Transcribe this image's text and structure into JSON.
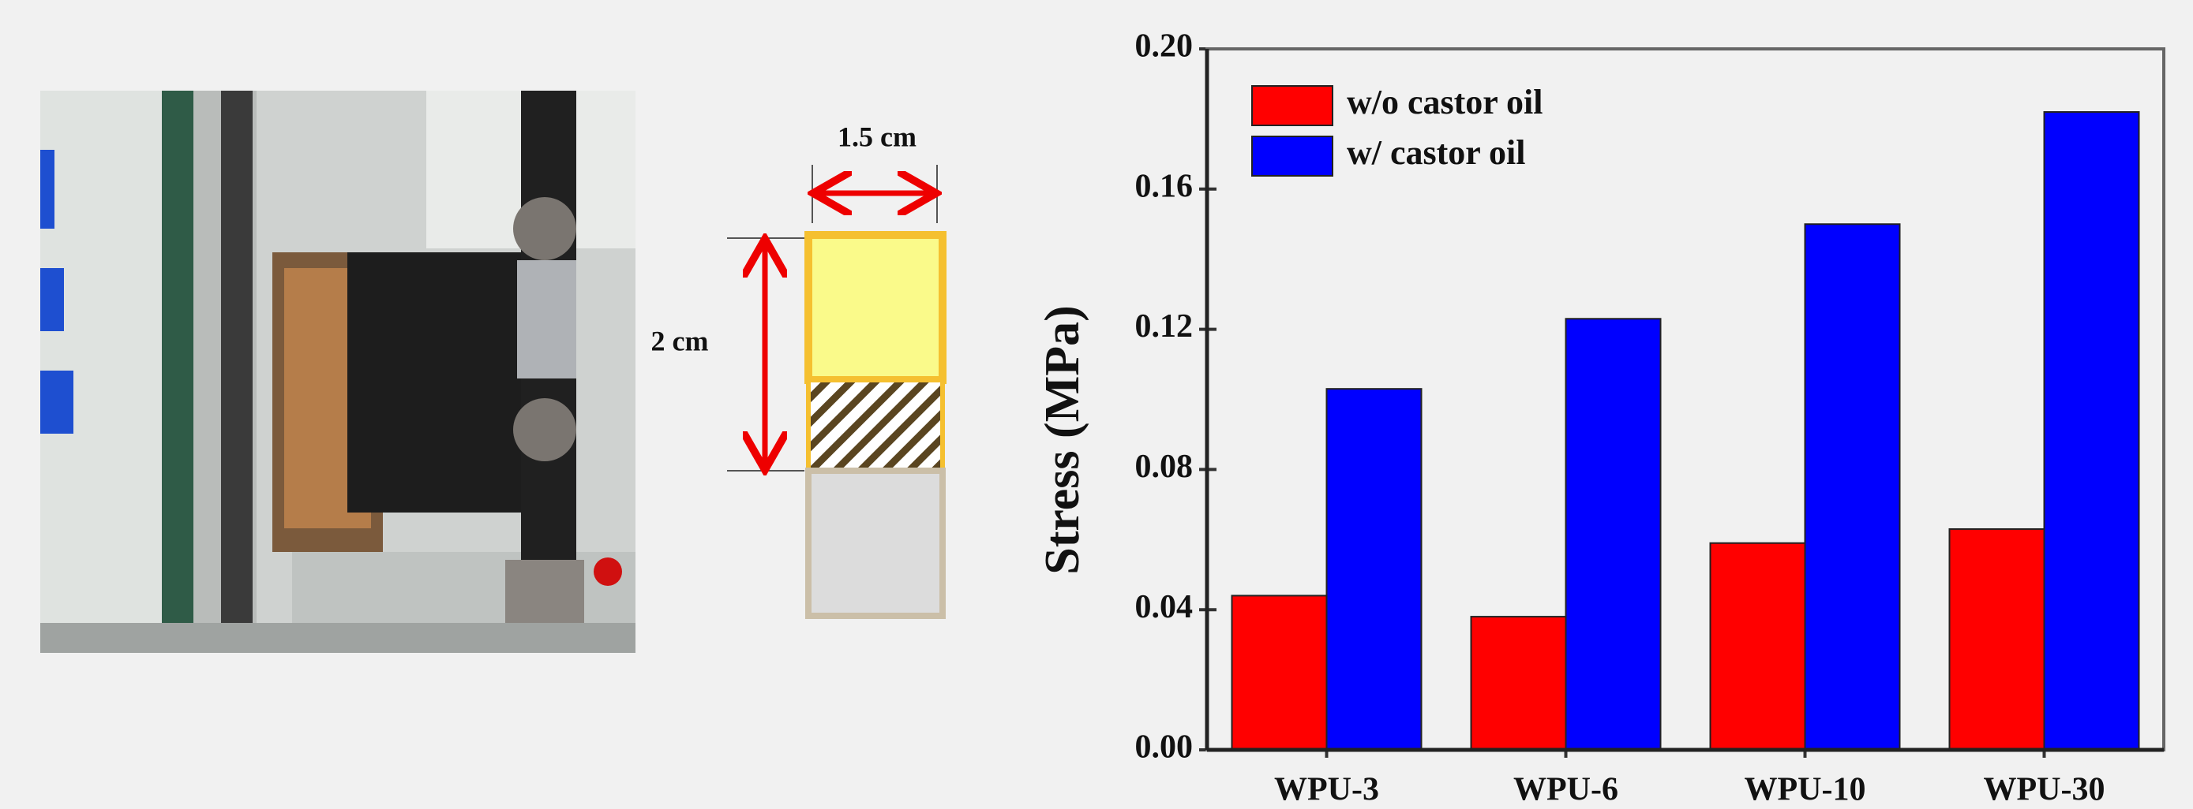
{
  "figure": {
    "width_label": "1.5 cm",
    "height_label": "2 cm"
  },
  "chart_data": {
    "type": "bar",
    "y_label": "Stress (MPa)",
    "categories": [
      "WPU-3",
      "WPU-6",
      "WPU-10",
      "WPU-30"
    ],
    "series": [
      {
        "name": "w/o castor oil",
        "color": "#ff0000",
        "values": [
          0.044,
          0.038,
          0.059,
          0.063
        ]
      },
      {
        "name": "w/ castor oil",
        "color": "#0000ff",
        "values": [
          0.103,
          0.123,
          0.15,
          0.182
        ]
      }
    ],
    "ylim": [
      0,
      0.2
    ],
    "yticks": [
      {
        "value": 0,
        "label": "0.00"
      },
      0.04,
      0.08,
      0.12,
      0.16,
      {
        "value": 0.2,
        "label": "0.20"
      }
    ],
    "legend": "upper-left"
  }
}
